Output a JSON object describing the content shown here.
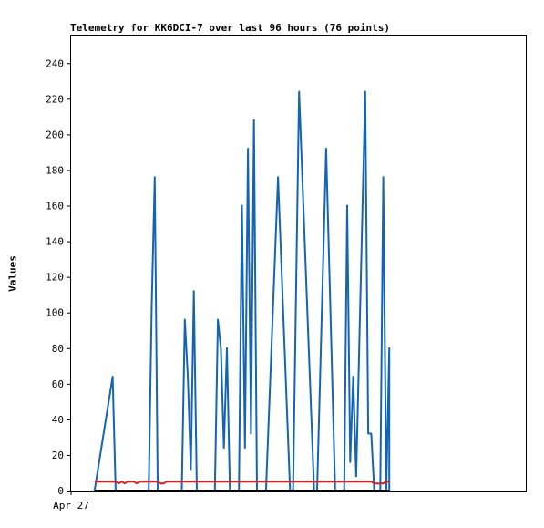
{
  "chart_data": {
    "type": "line",
    "title": "Telemetry for KK6DCI-7 over last 96 hours (76 points)",
    "xlabel": "",
    "ylabel": "Values",
    "x_tick_labels": [
      "Apr 27"
    ],
    "ylim": [
      0,
      256
    ],
    "yticks": [
      0,
      20,
      40,
      60,
      80,
      100,
      120,
      140,
      160,
      180,
      200,
      220,
      240
    ],
    "grid": false,
    "x_units": "point index (0 = first point, Apr 27)",
    "xlim": [
      0,
      110
    ],
    "series": [
      {
        "color": "#1464b4",
        "points": [
          [
            6,
            0
          ],
          [
            12,
            64
          ],
          [
            13,
            0
          ],
          [
            24,
            0
          ],
          [
            25,
            104
          ],
          [
            26,
            176
          ],
          [
            27,
            0
          ],
          [
            35,
            0
          ],
          [
            36,
            96
          ],
          [
            37,
            64
          ],
          [
            38,
            12
          ],
          [
            39,
            112
          ],
          [
            40,
            0
          ],
          [
            46,
            0
          ],
          [
            47,
            96
          ],
          [
            48,
            80
          ],
          [
            49,
            24
          ],
          [
            50,
            80
          ],
          [
            51,
            0
          ],
          [
            54,
            0
          ],
          [
            55,
            160
          ],
          [
            56,
            24
          ],
          [
            57,
            192
          ],
          [
            58,
            32
          ],
          [
            59,
            208
          ],
          [
            60,
            0
          ],
          [
            63,
            0
          ],
          [
            67,
            176
          ],
          [
            71,
            0
          ],
          [
            72,
            0
          ],
          [
            74,
            224
          ],
          [
            79,
            0
          ],
          [
            80,
            0
          ],
          [
            83,
            192
          ],
          [
            86,
            0
          ],
          [
            89,
            0
          ],
          [
            90,
            160
          ],
          [
            91,
            16
          ],
          [
            92,
            64
          ],
          [
            93,
            8
          ],
          [
            96,
            224
          ],
          [
            97,
            32
          ],
          [
            98,
            32
          ],
          [
            99,
            0
          ],
          [
            101,
            0
          ],
          [
            102,
            176
          ],
          [
            103,
            0
          ],
          [
            104,
            80
          ],
          [
            104,
            0
          ]
        ]
      },
      {
        "color": "#dc1e1e",
        "points": [
          [
            6,
            5
          ],
          [
            13,
            5
          ],
          [
            14,
            4
          ],
          [
            15,
            5
          ],
          [
            16,
            4
          ],
          [
            17,
            5
          ],
          [
            19,
            5
          ],
          [
            20,
            4
          ],
          [
            21,
            5
          ],
          [
            27,
            5
          ],
          [
            28,
            4
          ],
          [
            29,
            4
          ],
          [
            30,
            5
          ],
          [
            97,
            5
          ],
          [
            98,
            5
          ],
          [
            99,
            4
          ],
          [
            101,
            4
          ],
          [
            102,
            4
          ],
          [
            103,
            5
          ],
          [
            104,
            5
          ]
        ]
      },
      {
        "color": "#000000",
        "points": [
          [
            6,
            0
          ],
          [
            104,
            0
          ]
        ]
      }
    ]
  }
}
